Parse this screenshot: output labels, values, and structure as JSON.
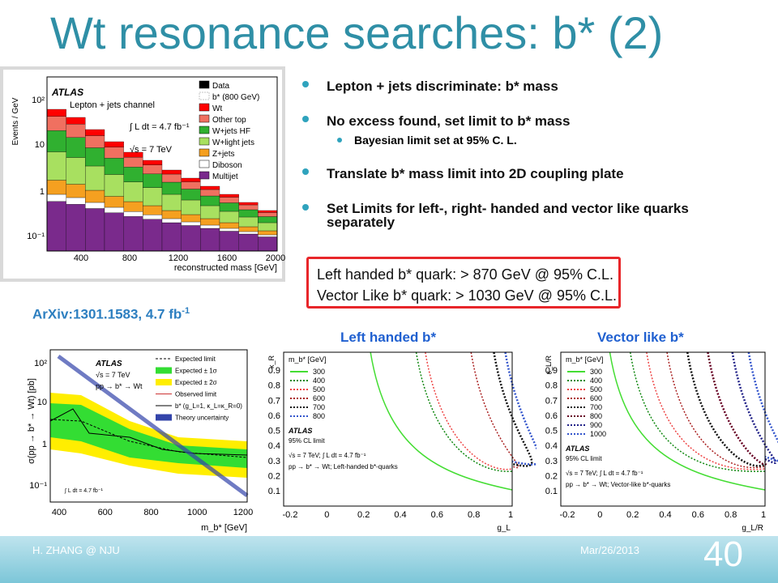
{
  "title": "Wt resonance searches: b* (2)",
  "bullets": [
    {
      "text": "Lepton + jets discriminate: b* mass"
    },
    {
      "text": "No excess found, set limit to b* mass",
      "sub": [
        "Bayesian limit set at 95% C. L."
      ]
    },
    {
      "text": "Translate b* mass limit into 2D coupling plate"
    },
    {
      "text": "Set Limits for left-, right- handed and vector like quarks separately"
    }
  ],
  "limits_box": [
    "Left handed b* quark: > 870 GeV @ 95% C.L.",
    "Vector Like b* quark:  > 1030 GeV @ 95% C.L."
  ],
  "reference": {
    "text": "ArXiv:1301.1583, 4.7 fb",
    "sup": "-1"
  },
  "plot_captions": [
    "Left handed b*",
    "Vector like b*"
  ],
  "footer": {
    "author": "H. ZHANG @ NJU",
    "date": "Mar/26/2013",
    "page": "40"
  },
  "plots": {
    "hist": {
      "texts": [
        "ATLAS",
        "Lepton + jets channel",
        "∫ L dt = 4.7 fb⁻¹",
        "√s = 7 TeV"
      ],
      "y_label": "Events / GeV",
      "x_label": "reconstructed mass [GeV]",
      "xticks": [
        "400",
        "800",
        "1200",
        "1600",
        "2000"
      ],
      "yticks": [
        "10⁻¹",
        "1",
        "10",
        "10²"
      ],
      "legend": [
        "Data",
        "b* (800 GeV)",
        "Wt",
        "Other top",
        "W+jets HF",
        "W+light jets",
        "Z+jets",
        "Diboson",
        "Multijet"
      ]
    },
    "xsec": {
      "texts": [
        "ATLAS",
        "√s = 7 TeV",
        "pp → b* → Wt",
        "∫ L dt = 4.7 fb⁻¹"
      ],
      "y_label": "σ(pp → b* → Wt) [pb]",
      "x_label": "m_b* [GeV]",
      "xticks": [
        "400",
        "600",
        "800",
        "1000",
        "1200"
      ],
      "yticks": [
        "10⁻¹",
        "1",
        "10",
        "10²"
      ],
      "legend": [
        "Expected limit",
        "Expected ± 1σ",
        "Expected ± 2σ",
        "Observed limit",
        "b* (g_L=1, κ_L=κ_R=0)",
        "Theory uncertainty"
      ]
    },
    "left": {
      "y_label": "κ_R",
      "x_label": "g_L",
      "legend_title": "m_b* [GeV]",
      "legend": [
        "300",
        "400",
        "500",
        "600",
        "700",
        "800"
      ],
      "texts": [
        "ATLAS",
        "95% CL limit",
        "√s = 7 TeV;  ∫ L dt = 4.7 fb⁻¹",
        "pp → b* → Wt; Left-handed b*-quarks"
      ],
      "xticks": [
        "-0.2",
        "0",
        "0.2",
        "0.4",
        "0.6",
        "0.8",
        "1"
      ],
      "yticks": [
        "0.1",
        "0.2",
        "0.3",
        "0.4",
        "0.5",
        "0.6",
        "0.7",
        "0.8",
        "0.9"
      ]
    },
    "right": {
      "y_label": "κ_L/R",
      "x_label": "g_L/R",
      "legend_title": "m_b* [GeV]",
      "legend": [
        "300",
        "400",
        "500",
        "600",
        "700",
        "800",
        "900",
        "1000"
      ],
      "texts": [
        "ATLAS",
        "95% CL limit",
        "√s = 7 TeV;  ∫ L dt = 4.7 fb⁻¹",
        "pp → b* → Wt; Vector-like b*-quarks"
      ],
      "xticks": [
        "-0.2",
        "0",
        "0.2",
        "0.4",
        "0.6",
        "0.8",
        "1"
      ],
      "yticks": [
        "0.1",
        "0.2",
        "0.3",
        "0.4",
        "0.5",
        "0.6",
        "0.7",
        "0.8",
        "0.9"
      ]
    }
  }
}
